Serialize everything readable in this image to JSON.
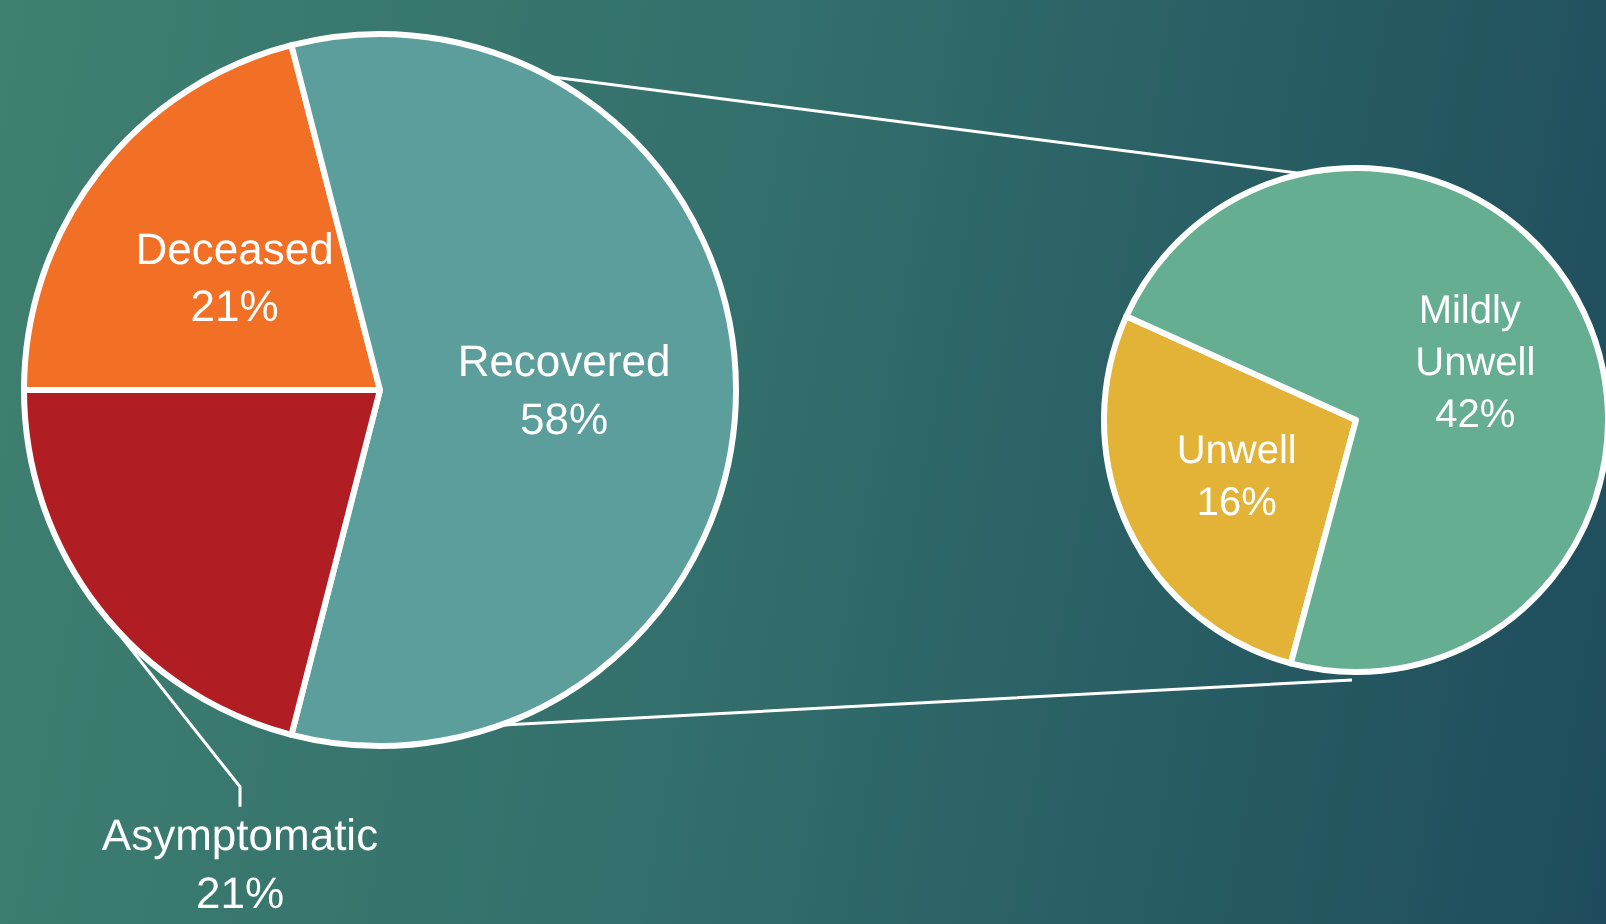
{
  "chart_data": [
    {
      "type": "pie",
      "categories": [
        "Deceased",
        "Recovered",
        "Asymptomatic"
      ],
      "values": [
        21,
        58,
        21
      ],
      "value_labels": [
        "21%",
        "58%",
        "21%"
      ],
      "colors": [
        "#f26f26",
        "#5b9e9c",
        "#b01e23"
      ],
      "legend": false
    },
    {
      "type": "pie",
      "categories": [
        "Unwell",
        "Mildly Unwell"
      ],
      "values": [
        16,
        42
      ],
      "value_labels": [
        "16%",
        "42%"
      ],
      "colors": [
        "#e3b337",
        "#66ae92"
      ],
      "legend": false
    }
  ]
}
